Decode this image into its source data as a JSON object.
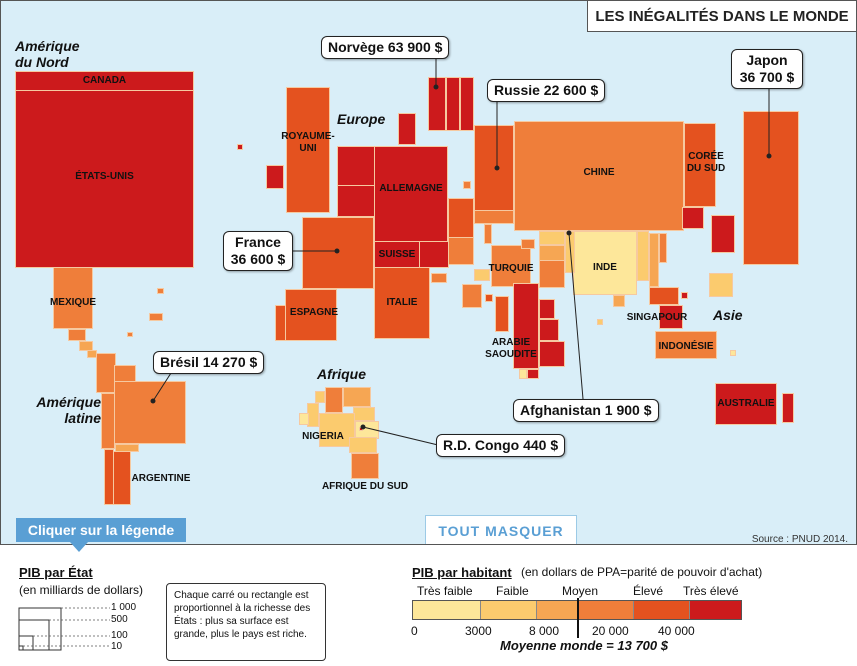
{
  "title": "LES INÉGALITÉS DANS LE MONDE",
  "regions": {
    "north_america": "Amérique du Nord",
    "europe": "Europe",
    "latin_america": "Amérique latine",
    "africa": "Afrique",
    "asia": "Asie"
  },
  "countries": {
    "canada": "CANADA",
    "usa": "ÉTATS-UNIS",
    "mexique": "MEXIQUE",
    "argentine": "ARGENTINE",
    "royaume_uni": "ROYAUME-UNI",
    "allemagne": "ALLEMAGNE",
    "suisse": "SUISSE",
    "espagne": "ESPAGNE",
    "italie": "ITALIE",
    "turquie": "TURQUIE",
    "arabie": "ARABIE SAOUDITE",
    "chine": "CHINE",
    "coree": "CORÉE DU SUD",
    "inde": "INDE",
    "singapour": "SINGAPOUR",
    "indonesie": "INDONÉSIE",
    "australie": "AUSTRALIE",
    "nigeria": "NIGERIA",
    "afrique_du_sud": "AFRIQUE DU SUD"
  },
  "callouts": {
    "norvege": "Norvège 63 900 $",
    "russie": "Russie 22 600 $",
    "japon": "Japon 36 700 $",
    "france": "France 36 600 $",
    "bresil": "Brésil 14 270 $",
    "afghanistan": "Afghanistan 1 900 $",
    "rdcongo": "R.D. Congo 440 $"
  },
  "buttons": {
    "legend": "Cliquer sur la légende",
    "hide_all": "TOUT MASQUER"
  },
  "source": "Source : PNUD 2014.",
  "legend": {
    "gdp_state": {
      "title": "PIB par État",
      "unit": "(en milliards de dollars)",
      "scale": [
        "1 000",
        "500",
        "100",
        "10"
      ],
      "note": "Chaque carré ou rectangle est proportionnel à la richesse des États : plus sa surface est grande, plus le pays est riche."
    },
    "gdp_capita": {
      "title": "PIB par habitant",
      "unit": "(en dollars de PPA=parité de pouvoir d'achat)",
      "categories": [
        "Très faible",
        "Faible",
        "Moyen",
        "Élevé",
        "Très élevé"
      ],
      "thresholds": [
        "0",
        "3000",
        "8 000",
        "20 000",
        "40 000"
      ],
      "colors": [
        "#fde79a",
        "#fbcb6e",
        "#f6a653",
        "#ef7e3a",
        "#e4521f",
        "#cc1a1c"
      ],
      "world_average": "Moyenne monde = 13 700 $"
    }
  },
  "colors": {
    "ocean": "#d9eef8",
    "very_high": "#cc1a1c",
    "high": "#e4521f",
    "medium_high": "#ef7e3a",
    "medium": "#f6a653",
    "low": "#fbcb6e",
    "very_low": "#fde79a",
    "accent": "#5a9fd4"
  }
}
